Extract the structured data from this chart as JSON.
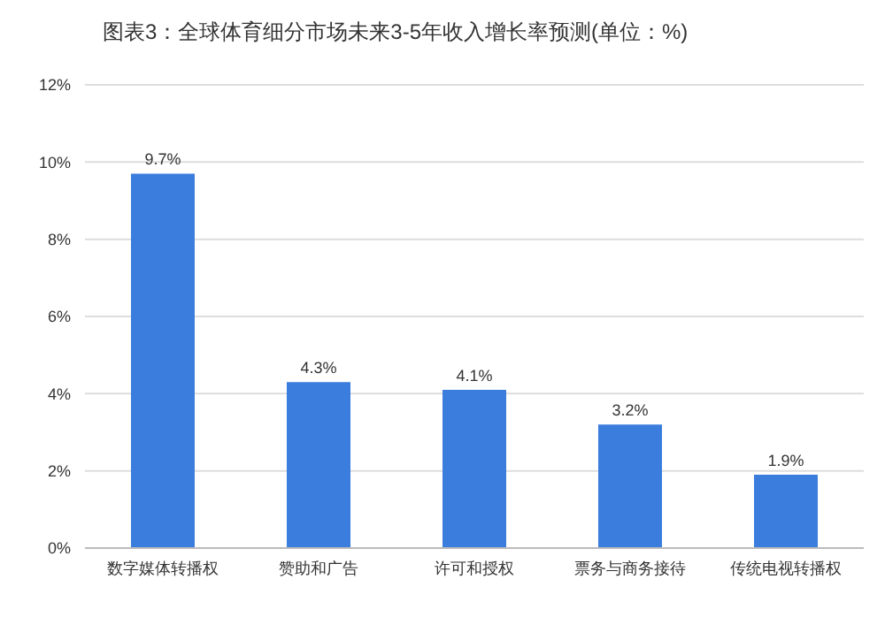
{
  "chart_data": {
    "type": "bar",
    "title": "图表3：全球体育细分市场未来3-5年收入增长率预测(单位：%)",
    "categories": [
      "数字媒体转播权",
      "赞助和广告",
      "许可和授权",
      "票务与商务接待",
      "传统电视转播权"
    ],
    "values": [
      9.7,
      4.3,
      4.1,
      3.2,
      1.9
    ],
    "value_labels": [
      "9.7%",
      "4.3%",
      "4.1%",
      "3.2%",
      "1.9%"
    ],
    "color": "#3b7ddd",
    "ylim": [
      0,
      12
    ],
    "yticks": [
      {
        "value": 0,
        "label": "0%"
      },
      {
        "value": 2,
        "label": "2%"
      },
      {
        "value": 4,
        "label": "4%"
      },
      {
        "value": 6,
        "label": "6%"
      },
      {
        "value": 8,
        "label": "8%"
      },
      {
        "value": 10,
        "label": "10%"
      },
      {
        "value": 12,
        "label": "12%"
      }
    ],
    "grid": "y",
    "legend": false
  }
}
